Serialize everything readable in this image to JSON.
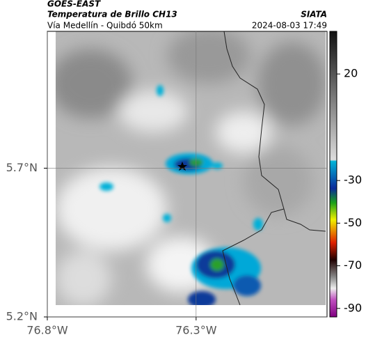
{
  "header": {
    "title": "GOES-EAST",
    "subtitle": "Temperatura de Brillo CH13",
    "location": "Vía Medellín - Quibdó 50km",
    "agency": "SIATA",
    "datetime": "2024-08-03 17:49"
  },
  "map": {
    "xlim": [
      -76.8,
      -75.86
    ],
    "ylim": [
      5.2,
      6.16
    ],
    "xticks": [
      {
        "value": -76.8,
        "label": "76.8°W"
      },
      {
        "value": -76.3,
        "label": "76.3°W"
      }
    ],
    "yticks": [
      {
        "value": 5.2,
        "label": "5.2°N"
      },
      {
        "value": 5.7,
        "label": "5.7°N"
      }
    ]
  },
  "colorbar": {
    "lim": [
      -94,
      40
    ],
    "ticks": [
      20,
      -30,
      -50,
      -70,
      -90
    ]
  }
}
